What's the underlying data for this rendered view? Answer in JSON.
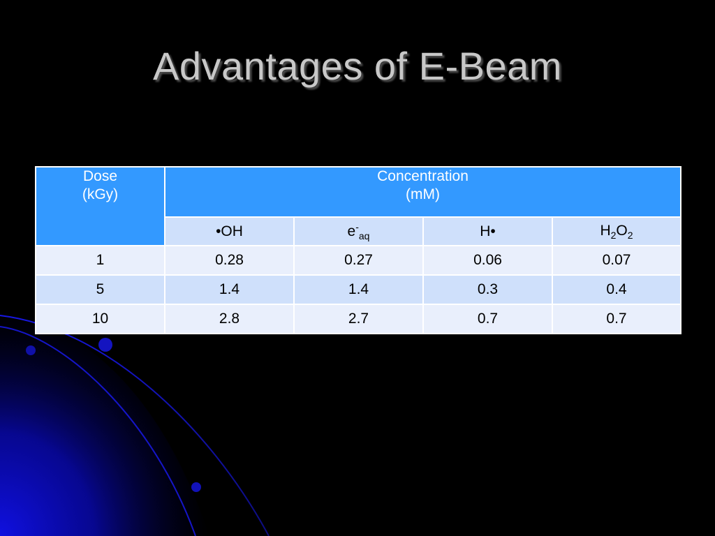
{
  "slide": {
    "title": "Advantages of E-Beam"
  },
  "table": {
    "dose_header": {
      "line1": "Dose",
      "line2": "(kGy)"
    },
    "concentration_header": {
      "line1": "Concentration",
      "line2": "(mM)"
    },
    "species": {
      "oh": "•OH",
      "eaq_base": "e",
      "eaq_sup": "-",
      "eaq_sub": "aq",
      "h": "H•",
      "h2o2_h": "H",
      "h2o2_sub1": "2",
      "h2o2_o": "O",
      "h2o2_sub2": "2"
    },
    "rows": [
      {
        "dose": "1",
        "oh": "0.28",
        "eaq": "0.27",
        "h": "0.06",
        "h2o2": "0.07"
      },
      {
        "dose": "5",
        "oh": "1.4",
        "eaq": "1.4",
        "h": "0.3",
        "h2o2": "0.4"
      },
      {
        "dose": "10",
        "oh": "2.8",
        "eaq": "2.7",
        "h": "0.7",
        "h2o2": "0.7"
      }
    ]
  },
  "colors": {
    "background": "#000000",
    "title_text": "#c8c8c8",
    "header_blue": "#3399ff",
    "row_light": "#e9effc",
    "row_mid": "#cfe0fb",
    "decor_blue": "#0a0ad0"
  }
}
